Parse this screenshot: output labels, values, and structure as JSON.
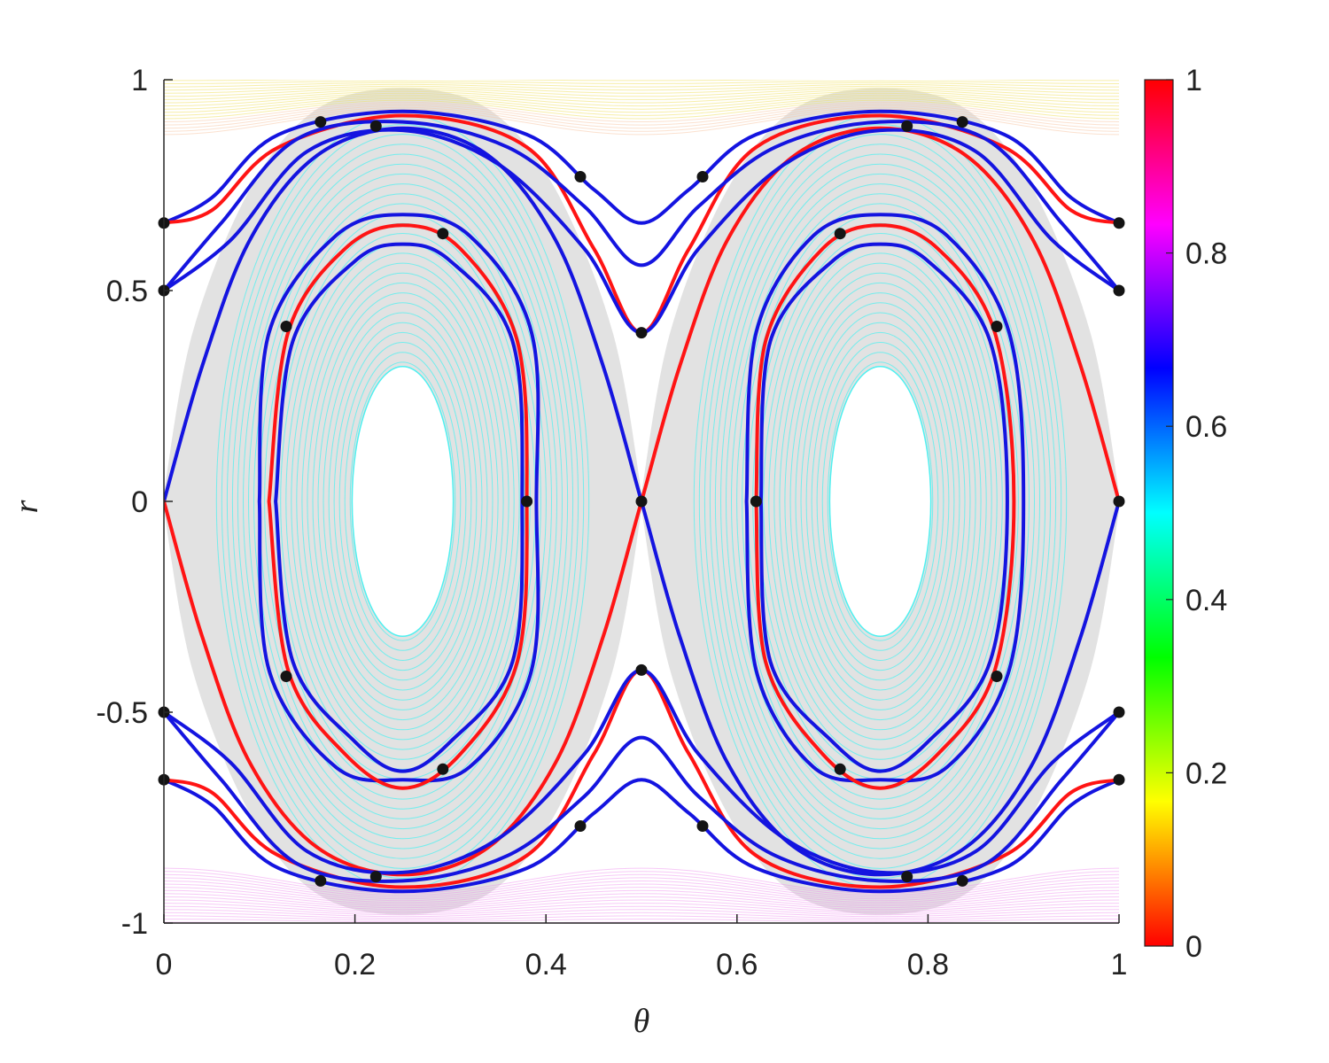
{
  "chart_data": {
    "type": "line",
    "title": "",
    "xlabel": "θ",
    "ylabel": "r",
    "xlim": [
      0,
      1
    ],
    "ylim": [
      -1,
      1
    ],
    "x_ticks": [
      0,
      0.2,
      0.4,
      0.6,
      0.8,
      1
    ],
    "x_tick_labels": [
      "0",
      "0.2",
      "0.4",
      "0.6",
      "0.8",
      "1"
    ],
    "y_ticks": [
      -1,
      -0.5,
      0,
      0.5,
      1
    ],
    "y_tick_labels": [
      "-1",
      "-0.5",
      "0",
      "0.5",
      "1"
    ],
    "grid": false,
    "colorbar": {
      "colormap": "hsv",
      "range": [
        0,
        1
      ],
      "ticks": [
        0,
        0.2,
        0.4,
        0.6,
        0.8,
        1
      ],
      "tick_labels": [
        "0",
        "0.2",
        "0.4",
        "0.6",
        "0.8",
        "1"
      ],
      "stops": [
        "#ff0000",
        "#ffff00",
        "#00ff00",
        "#00ffff",
        "#0000ff",
        "#ff00ff",
        "#ff0000"
      ]
    },
    "colors": {
      "curve_a": "#ff1414",
      "curve_b": "#1414e0",
      "period_points": "#141414",
      "chaotic_region": "#d8d8d8",
      "island_orbits": "#4ff0f0",
      "upper_invariant_curves": "#f0e060",
      "lower_invariant_curves": "#ee88ee"
    },
    "period_points": [
      {
        "x": 0,
        "y": 0.66
      },
      {
        "x": 0,
        "y": 0.5
      },
      {
        "x": 0.164,
        "y": 0.9
      },
      {
        "x": 0.222,
        "y": 0.89
      },
      {
        "x": 0.436,
        "y": 0.77
      },
      {
        "x": 0.564,
        "y": 0.77
      },
      {
        "x": 0.778,
        "y": 0.89
      },
      {
        "x": 0.836,
        "y": 0.9
      },
      {
        "x": 1,
        "y": 0.66
      },
      {
        "x": 1,
        "y": 0.5
      },
      {
        "x": 0.292,
        "y": 0.635
      },
      {
        "x": 0.708,
        "y": 0.635
      },
      {
        "x": 0.128,
        "y": 0.415
      },
      {
        "x": 0.872,
        "y": 0.415
      },
      {
        "x": 0.5,
        "y": 0.4
      },
      {
        "x": 0.38,
        "y": 0
      },
      {
        "x": 0.5,
        "y": 0
      },
      {
        "x": 0.62,
        "y": 0
      },
      {
        "x": 1,
        "y": 0
      },
      {
        "x": 0.128,
        "y": -0.415
      },
      {
        "x": 0.872,
        "y": -0.415
      },
      {
        "x": 0.5,
        "y": -0.4
      },
      {
        "x": 0.292,
        "y": -0.635
      },
      {
        "x": 0.708,
        "y": -0.635
      },
      {
        "x": 0,
        "y": -0.5
      },
      {
        "x": 0,
        "y": -0.66
      },
      {
        "x": 1,
        "y": -0.5
      },
      {
        "x": 1,
        "y": -0.66
      },
      {
        "x": 0.436,
        "y": -0.77
      },
      {
        "x": 0.564,
        "y": -0.77
      },
      {
        "x": 0.164,
        "y": -0.9
      },
      {
        "x": 0.222,
        "y": -0.89
      },
      {
        "x": 0.778,
        "y": -0.89
      },
      {
        "x": 0.836,
        "y": -0.9
      }
    ],
    "series": [
      {
        "color": "#1414e0",
        "points": [
          [
            0.1,
            0
          ],
          [
            0.11,
            0.4
          ],
          [
            0.18,
            0.63
          ],
          [
            0.25,
            0.68
          ],
          [
            0.32,
            0.63
          ],
          [
            0.385,
            0.4
          ],
          [
            0.39,
            0
          ],
          [
            0.385,
            -0.4
          ],
          [
            0.32,
            -0.63
          ],
          [
            0.25,
            -0.66
          ],
          [
            0.18,
            -0.63
          ],
          [
            0.11,
            -0.4
          ],
          [
            0.1,
            0
          ]
        ]
      },
      {
        "color": "#ff1414",
        "points": [
          [
            0.11,
            0
          ],
          [
            0.13,
            0.4
          ],
          [
            0.19,
            0.6
          ],
          [
            0.25,
            0.655
          ],
          [
            0.31,
            0.6
          ],
          [
            0.37,
            0.38
          ],
          [
            0.38,
            0
          ],
          [
            0.37,
            -0.38
          ],
          [
            0.31,
            -0.6
          ],
          [
            0.25,
            -0.68
          ],
          [
            0.19,
            -0.6
          ],
          [
            0.13,
            -0.4
          ],
          [
            0.11,
            0
          ]
        ]
      },
      {
        "color": "#1414e0",
        "points": [
          [
            0.117,
            0
          ],
          [
            0.135,
            0.38
          ],
          [
            0.2,
            0.57
          ],
          [
            0.25,
            0.61
          ],
          [
            0.3,
            0.57
          ],
          [
            0.365,
            0.38
          ],
          [
            0.375,
            0
          ],
          [
            0.365,
            -0.38
          ],
          [
            0.3,
            -0.57
          ],
          [
            0.25,
            -0.64
          ],
          [
            0.2,
            -0.57
          ],
          [
            0.135,
            -0.38
          ],
          [
            0.117,
            0
          ]
        ]
      },
      {
        "color": "#1414e0",
        "points": [
          [
            0.61,
            0
          ],
          [
            0.62,
            0.4
          ],
          [
            0.68,
            0.63
          ],
          [
            0.75,
            0.68
          ],
          [
            0.82,
            0.63
          ],
          [
            0.885,
            0.4
          ],
          [
            0.9,
            0
          ],
          [
            0.885,
            -0.4
          ],
          [
            0.82,
            -0.63
          ],
          [
            0.75,
            -0.66
          ],
          [
            0.68,
            -0.63
          ],
          [
            0.62,
            -0.4
          ],
          [
            0.61,
            0
          ]
        ]
      },
      {
        "color": "#ff1414",
        "points": [
          [
            0.62,
            0
          ],
          [
            0.63,
            0.38
          ],
          [
            0.69,
            0.6
          ],
          [
            0.75,
            0.655
          ],
          [
            0.81,
            0.6
          ],
          [
            0.87,
            0.4
          ],
          [
            0.89,
            0
          ],
          [
            0.87,
            -0.4
          ],
          [
            0.81,
            -0.6
          ],
          [
            0.75,
            -0.68
          ],
          [
            0.69,
            -0.6
          ],
          [
            0.63,
            -0.38
          ],
          [
            0.62,
            0
          ]
        ]
      },
      {
        "color": "#1414e0",
        "points": [
          [
            0.625,
            0
          ],
          [
            0.635,
            0.38
          ],
          [
            0.7,
            0.57
          ],
          [
            0.75,
            0.61
          ],
          [
            0.8,
            0.57
          ],
          [
            0.865,
            0.38
          ],
          [
            0.883,
            0
          ],
          [
            0.865,
            -0.38
          ],
          [
            0.8,
            -0.57
          ],
          [
            0.75,
            -0.64
          ],
          [
            0.7,
            -0.57
          ],
          [
            0.635,
            -0.38
          ],
          [
            0.625,
            0
          ]
        ]
      },
      {
        "color": "#1414e0",
        "points": [
          [
            0,
            0
          ],
          [
            0.04,
            0.32
          ],
          [
            0.09,
            0.62
          ],
          [
            0.16,
            0.82
          ],
          [
            0.25,
            0.885
          ],
          [
            0.34,
            0.82
          ],
          [
            0.41,
            0.62
          ],
          [
            0.46,
            0.32
          ],
          [
            0.5,
            0
          ],
          [
            0.54,
            -0.32
          ],
          [
            0.59,
            -0.62
          ],
          [
            0.66,
            -0.82
          ],
          [
            0.75,
            -0.885
          ],
          [
            0.84,
            -0.82
          ],
          [
            0.91,
            -0.62
          ],
          [
            0.96,
            -0.32
          ],
          [
            1,
            0
          ]
        ]
      },
      {
        "color": "#ff1414",
        "points": [
          [
            0,
            0
          ],
          [
            0.04,
            -0.32
          ],
          [
            0.09,
            -0.62
          ],
          [
            0.16,
            -0.82
          ],
          [
            0.25,
            -0.885
          ],
          [
            0.34,
            -0.82
          ],
          [
            0.41,
            -0.62
          ],
          [
            0.46,
            -0.32
          ],
          [
            0.5,
            0
          ],
          [
            0.54,
            0.32
          ],
          [
            0.59,
            0.62
          ],
          [
            0.66,
            0.82
          ],
          [
            0.75,
            0.885
          ],
          [
            0.84,
            0.82
          ],
          [
            0.91,
            0.62
          ],
          [
            0.96,
            0.32
          ],
          [
            1,
            0
          ]
        ]
      },
      {
        "color": "#1414e0",
        "points": [
          [
            0,
            0.66
          ],
          [
            0.05,
            0.72
          ],
          [
            0.12,
            0.87
          ],
          [
            0.25,
            0.925
          ],
          [
            0.38,
            0.87
          ],
          [
            0.45,
            0.74
          ],
          [
            0.5,
            0.66
          ],
          [
            0.55,
            0.74
          ],
          [
            0.62,
            0.87
          ],
          [
            0.75,
            0.925
          ],
          [
            0.88,
            0.87
          ],
          [
            0.95,
            0.72
          ],
          [
            1,
            0.66
          ]
        ]
      },
      {
        "color": "#ff1414",
        "points": [
          [
            0,
            0.66
          ],
          [
            0.05,
            0.69
          ],
          [
            0.12,
            0.84
          ],
          [
            0.25,
            0.915
          ],
          [
            0.38,
            0.84
          ],
          [
            0.45,
            0.6
          ],
          [
            0.5,
            0.4
          ],
          [
            0.55,
            0.6
          ],
          [
            0.62,
            0.84
          ],
          [
            0.75,
            0.915
          ],
          [
            0.88,
            0.84
          ],
          [
            0.95,
            0.69
          ],
          [
            1,
            0.66
          ]
        ]
      },
      {
        "color": "#1414e0",
        "points": [
          [
            0,
            0.5
          ],
          [
            0.06,
            0.66
          ],
          [
            0.14,
            0.86
          ],
          [
            0.25,
            0.9
          ],
          [
            0.36,
            0.84
          ],
          [
            0.44,
            0.7
          ],
          [
            0.5,
            0.56
          ],
          [
            0.56,
            0.7
          ],
          [
            0.64,
            0.84
          ],
          [
            0.75,
            0.9
          ],
          [
            0.86,
            0.86
          ],
          [
            0.94,
            0.66
          ],
          [
            1,
            0.5
          ]
        ]
      },
      {
        "color": "#1414e0",
        "points": [
          [
            0,
            0.5
          ],
          [
            0.07,
            0.62
          ],
          [
            0.15,
            0.83
          ],
          [
            0.25,
            0.88
          ],
          [
            0.35,
            0.8
          ],
          [
            0.44,
            0.6
          ],
          [
            0.5,
            0.4
          ],
          [
            0.56,
            0.6
          ],
          [
            0.65,
            0.8
          ],
          [
            0.75,
            0.88
          ],
          [
            0.85,
            0.83
          ],
          [
            0.93,
            0.62
          ],
          [
            1,
            0.5
          ]
        ]
      },
      {
        "color": "#1414e0",
        "points": [
          [
            0,
            -0.66
          ],
          [
            0.05,
            -0.72
          ],
          [
            0.12,
            -0.87
          ],
          [
            0.25,
            -0.925
          ],
          [
            0.38,
            -0.87
          ],
          [
            0.45,
            -0.74
          ],
          [
            0.5,
            -0.66
          ],
          [
            0.55,
            -0.74
          ],
          [
            0.62,
            -0.87
          ],
          [
            0.75,
            -0.925
          ],
          [
            0.88,
            -0.87
          ],
          [
            0.95,
            -0.72
          ],
          [
            1,
            -0.66
          ]
        ]
      },
      {
        "color": "#ff1414",
        "points": [
          [
            0,
            -0.66
          ],
          [
            0.05,
            -0.69
          ],
          [
            0.12,
            -0.84
          ],
          [
            0.25,
            -0.915
          ],
          [
            0.38,
            -0.84
          ],
          [
            0.45,
            -0.6
          ],
          [
            0.5,
            -0.4
          ],
          [
            0.55,
            -0.6
          ],
          [
            0.62,
            -0.84
          ],
          [
            0.75,
            -0.915
          ],
          [
            0.88,
            -0.84
          ],
          [
            0.95,
            -0.69
          ],
          [
            1,
            -0.66
          ]
        ]
      },
      {
        "color": "#1414e0",
        "points": [
          [
            0,
            -0.5
          ],
          [
            0.06,
            -0.66
          ],
          [
            0.14,
            -0.86
          ],
          [
            0.25,
            -0.9
          ],
          [
            0.36,
            -0.84
          ],
          [
            0.44,
            -0.7
          ],
          [
            0.5,
            -0.56
          ],
          [
            0.56,
            -0.7
          ],
          [
            0.64,
            -0.84
          ],
          [
            0.75,
            -0.9
          ],
          [
            0.86,
            -0.86
          ],
          [
            0.94,
            -0.66
          ],
          [
            1,
            -0.5
          ]
        ]
      },
      {
        "color": "#1414e0",
        "points": [
          [
            0,
            -0.5
          ],
          [
            0.07,
            -0.62
          ],
          [
            0.15,
            -0.83
          ],
          [
            0.25,
            -0.88
          ],
          [
            0.35,
            -0.8
          ],
          [
            0.44,
            -0.6
          ],
          [
            0.5,
            -0.4
          ],
          [
            0.56,
            -0.6
          ],
          [
            0.65,
            -0.8
          ],
          [
            0.75,
            -0.88
          ],
          [
            0.85,
            -0.83
          ],
          [
            0.93,
            -0.62
          ],
          [
            1,
            -0.5
          ]
        ]
      }
    ]
  }
}
